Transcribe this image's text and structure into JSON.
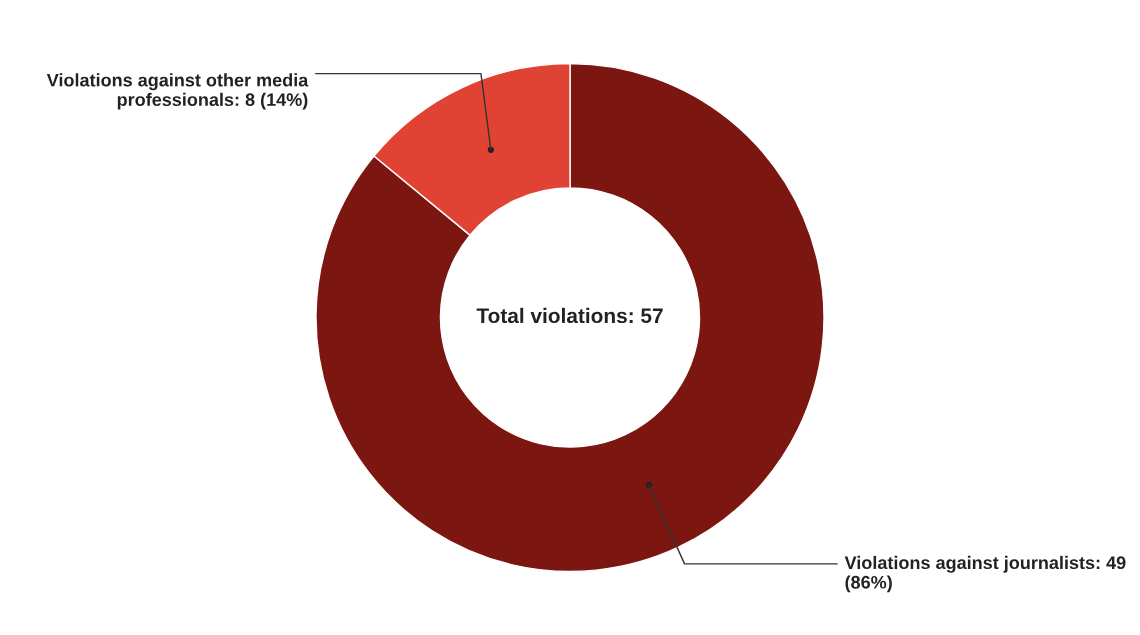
{
  "chart_data": {
    "type": "donut",
    "categories": [
      "Violations against journalists",
      "Violations against other media professionals"
    ],
    "values": [
      49,
      8
    ],
    "colors": [
      "#7b1610",
      "#e04333"
    ],
    "value_labels": [
      "49 (86%)",
      "8 (14%)"
    ],
    "annotations": [
      "Total violations: 57"
    ],
    "legend": false
  }
}
